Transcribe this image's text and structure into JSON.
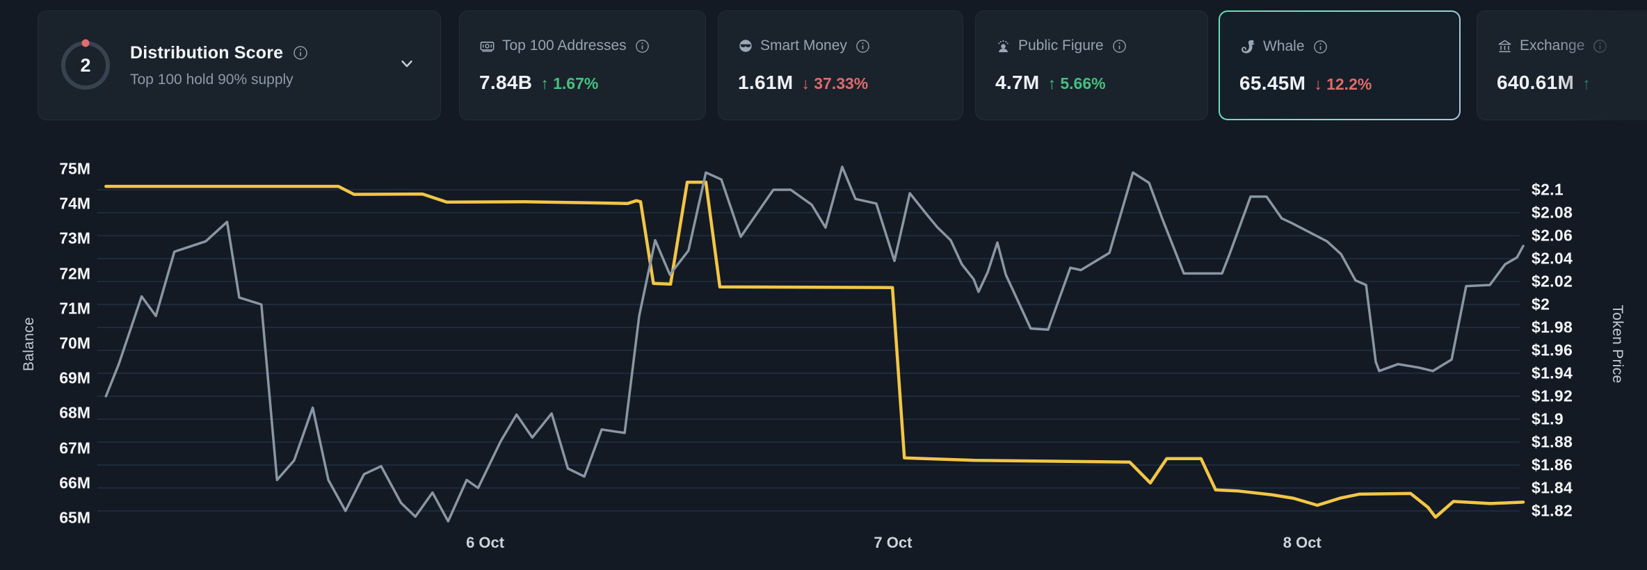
{
  "colors": {
    "background": "#131a23",
    "card_background": "#1a222c",
    "selected_card_border": "#63dfb2",
    "green": "#43c17e",
    "red": "#e06a6a",
    "whale_line": "#f2c646",
    "price_line": "#8a96a4",
    "grid": "#26344d",
    "icon_gray": "#9aa7b5"
  },
  "cards": {
    "distribution": {
      "score": "2",
      "title": "Distribution Score",
      "subtitle": "Top 100 hold 90% supply",
      "info_icon": "info-icon",
      "expander_icon": "chevron-down-icon"
    },
    "metrics": [
      {
        "id": "top-100-addresses",
        "icon": "banknote-icon",
        "title": "Top 100 Addresses",
        "value": "7.84B",
        "change": "1.67%",
        "direction": "up",
        "selected": false
      },
      {
        "id": "smart-money",
        "icon": "smart-money-icon",
        "title": "Smart Money",
        "value": "1.61M",
        "change": "37.33%",
        "direction": "down",
        "selected": false
      },
      {
        "id": "public-figure",
        "icon": "public-figure-icon",
        "title": "Public Figure",
        "value": "4.7M",
        "change": "5.66%",
        "direction": "up",
        "selected": false
      },
      {
        "id": "whale",
        "icon": "whale-icon",
        "title": "Whale",
        "value": "65.45M",
        "change": "12.2%",
        "direction": "down",
        "selected": true
      },
      {
        "id": "exchange",
        "icon": "bank-icon",
        "title": "Exchange",
        "value": "640.61M",
        "change": "",
        "direction": "up",
        "selected": false,
        "clipped": true
      }
    ]
  },
  "chart_data": {
    "type": "line",
    "title": "",
    "x_axis": {
      "ticks": [
        {
          "label": "6 Oct",
          "t": 0.272
        },
        {
          "label": "7 Oct",
          "t": 0.558
        },
        {
          "label": "8 Oct",
          "t": 0.845
        }
      ]
    },
    "left_axis": {
      "title": "Balance",
      "tick_labels": [
        "75M",
        "74M",
        "73M",
        "72M",
        "71M",
        "70M",
        "69M",
        "68M",
        "67M",
        "66M",
        "65M"
      ],
      "tick_values": [
        75,
        74,
        73,
        72,
        71,
        70,
        69,
        68,
        67,
        66,
        65
      ]
    },
    "right_axis": {
      "title": "Token Price",
      "tick_labels": [
        "$2.1",
        "$2.08",
        "$2.06",
        "$2.04",
        "$2.02",
        "$2",
        "$1.98",
        "$1.96",
        "$1.94",
        "$1.92",
        "$1.9",
        "$1.88",
        "$1.86",
        "$1.84",
        "$1.82"
      ],
      "tick_values": [
        2.1,
        2.08,
        2.06,
        2.04,
        2.02,
        2.0,
        1.98,
        1.96,
        1.94,
        1.92,
        1.9,
        1.88,
        1.86,
        1.84,
        1.82
      ]
    },
    "grid": {
      "horizontal": true,
      "vertical": false
    },
    "legend": "none",
    "series": [
      {
        "name": "whale-balance",
        "axis": "left",
        "unit": "M tokens",
        "color": "#f2c646",
        "stroke_width": 4.5,
        "points": [
          [
            0.006,
            74.5
          ],
          [
            0.1,
            74.5
          ],
          [
            0.169,
            74.5
          ],
          [
            0.18,
            74.27
          ],
          [
            0.228,
            74.28
          ],
          [
            0.245,
            74.05
          ],
          [
            0.3,
            74.06
          ],
          [
            0.345,
            74.03
          ],
          [
            0.372,
            74.01
          ],
          [
            0.378,
            74.09
          ],
          [
            0.381,
            74.06
          ],
          [
            0.39,
            71.72
          ],
          [
            0.402,
            71.7
          ],
          [
            0.4137,
            74.62
          ],
          [
            0.4268,
            74.62
          ],
          [
            0.4366,
            71.62
          ],
          [
            0.5576,
            71.6
          ],
          [
            0.566,
            66.72
          ],
          [
            0.615,
            66.65
          ],
          [
            0.724,
            66.6
          ],
          [
            0.7385,
            66.0
          ],
          [
            0.75,
            66.7
          ],
          [
            0.774,
            66.7
          ],
          [
            0.7843,
            65.8
          ],
          [
            0.8,
            65.77
          ],
          [
            0.824,
            65.66
          ],
          [
            0.839,
            65.56
          ],
          [
            0.8556,
            65.36
          ],
          [
            0.872,
            65.57
          ],
          [
            0.885,
            65.68
          ],
          [
            0.921,
            65.7
          ],
          [
            0.9332,
            65.3
          ],
          [
            0.9385,
            65.02
          ],
          [
            0.951,
            65.47
          ],
          [
            0.977,
            65.41
          ],
          [
            1.0,
            65.45
          ]
        ]
      },
      {
        "name": "token-price",
        "axis": "right",
        "unit": "USD",
        "color": "#8a96a4",
        "stroke_width": 3.5,
        "points": [
          [
            0.006,
            1.92
          ],
          [
            0.015,
            1.948
          ],
          [
            0.031,
            2.007
          ],
          [
            0.041,
            1.99
          ],
          [
            0.054,
            2.046
          ],
          [
            0.076,
            2.055
          ],
          [
            0.091,
            2.072
          ],
          [
            0.0995,
            2.006
          ],
          [
            0.115,
            2.0
          ],
          [
            0.126,
            1.847
          ],
          [
            0.138,
            1.864
          ],
          [
            0.151,
            1.91
          ],
          [
            0.162,
            1.847
          ],
          [
            0.174,
            1.82
          ],
          [
            0.187,
            1.852
          ],
          [
            0.199,
            1.859
          ],
          [
            0.213,
            1.827
          ],
          [
            0.223,
            1.815
          ],
          [
            0.235,
            1.836
          ],
          [
            0.246,
            1.811
          ],
          [
            0.259,
            1.847
          ],
          [
            0.267,
            1.84
          ],
          [
            0.283,
            1.881
          ],
          [
            0.294,
            1.904
          ],
          [
            0.305,
            1.884
          ],
          [
            0.3186,
            1.905
          ],
          [
            0.33,
            1.857
          ],
          [
            0.3415,
            1.85
          ],
          [
            0.3537,
            1.891
          ],
          [
            0.3698,
            1.888
          ],
          [
            0.38,
            1.99
          ],
          [
            0.3912,
            2.056
          ],
          [
            0.4015,
            2.026
          ],
          [
            0.4146,
            2.047
          ],
          [
            0.4268,
            2.115
          ],
          [
            0.4376,
            2.109
          ],
          [
            0.4512,
            2.059
          ],
          [
            0.4741,
            2.1
          ],
          [
            0.4863,
            2.1
          ],
          [
            0.501,
            2.087
          ],
          [
            0.5107,
            2.067
          ],
          [
            0.5224,
            2.12
          ],
          [
            0.5317,
            2.092
          ],
          [
            0.5463,
            2.088
          ],
          [
            0.559,
            2.038
          ],
          [
            0.5698,
            2.097
          ],
          [
            0.582,
            2.078
          ],
          [
            0.5893,
            2.067
          ],
          [
            0.5985,
            2.056
          ],
          [
            0.6063,
            2.035
          ],
          [
            0.6146,
            2.022
          ],
          [
            0.618,
            2.011
          ],
          [
            0.6244,
            2.028
          ],
          [
            0.6312,
            2.054
          ],
          [
            0.6371,
            2.026
          ],
          [
            0.6546,
            1.979
          ],
          [
            0.6668,
            1.978
          ],
          [
            0.6824,
            2.032
          ],
          [
            0.6898,
            2.03
          ],
          [
            0.7098,
            2.045
          ],
          [
            0.7263,
            2.115
          ],
          [
            0.7376,
            2.106
          ],
          [
            0.7468,
            2.075
          ],
          [
            0.7522,
            2.058
          ],
          [
            0.762,
            2.027
          ],
          [
            0.7888,
            2.027
          ],
          [
            0.7941,
            2.044
          ],
          [
            0.8088,
            2.094
          ],
          [
            0.82,
            2.094
          ],
          [
            0.8307,
            2.075
          ],
          [
            0.8376,
            2.071
          ],
          [
            0.8624,
            2.055
          ],
          [
            0.8722,
            2.044
          ],
          [
            0.8824,
            2.021
          ],
          [
            0.8898,
            2.017
          ],
          [
            0.8966,
            1.95
          ],
          [
            0.899,
            1.942
          ],
          [
            0.9122,
            1.948
          ],
          [
            0.9268,
            1.945
          ],
          [
            0.9366,
            1.942
          ],
          [
            0.9498,
            1.952
          ],
          [
            0.96,
            2.016
          ],
          [
            0.9766,
            2.017
          ],
          [
            0.9873,
            2.035
          ],
          [
            0.9956,
            2.041
          ],
          [
            1.0,
            2.051
          ]
        ]
      }
    ]
  }
}
